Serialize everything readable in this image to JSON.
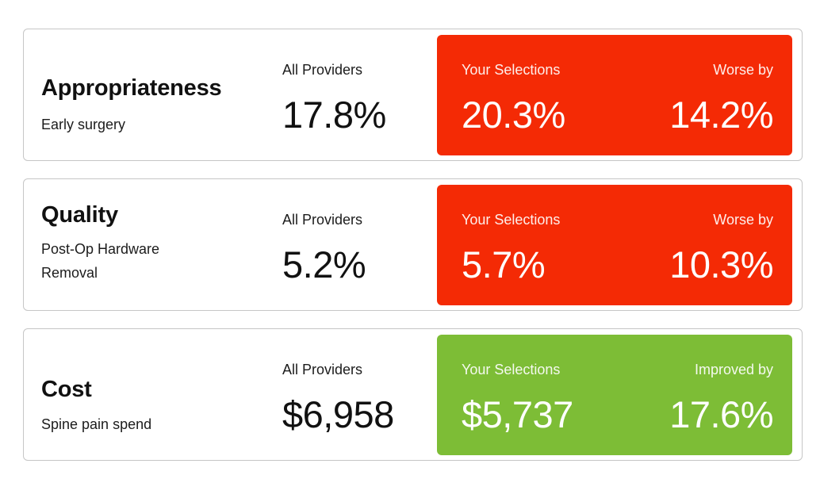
{
  "colors": {
    "worse": "#f42a05",
    "improved": "#7dbd36"
  },
  "metrics": [
    {
      "title": "Appropriateness",
      "subtitle": "Early surgery",
      "all_label": "All Providers",
      "all_value": "17.8%",
      "selection_label": "Your Selections",
      "selection_value": "20.3%",
      "comparison_label": "Worse by",
      "comparison_value": "14.2%",
      "status": "worse"
    },
    {
      "title": "Quality",
      "subtitle": "Post-Op Hardware Removal",
      "all_label": "All Providers",
      "all_value": "5.2%",
      "selection_label": "Your Selections",
      "selection_value": "5.7%",
      "comparison_label": "Worse by",
      "comparison_value": "10.3%",
      "status": "worse"
    },
    {
      "title": "Cost",
      "subtitle": "Spine pain spend",
      "all_label": "All Providers",
      "all_value": "$6,958",
      "selection_label": "Your Selections",
      "selection_value": "$5,737",
      "comparison_label": "Improved by",
      "comparison_value": "17.6%",
      "status": "improved"
    }
  ]
}
